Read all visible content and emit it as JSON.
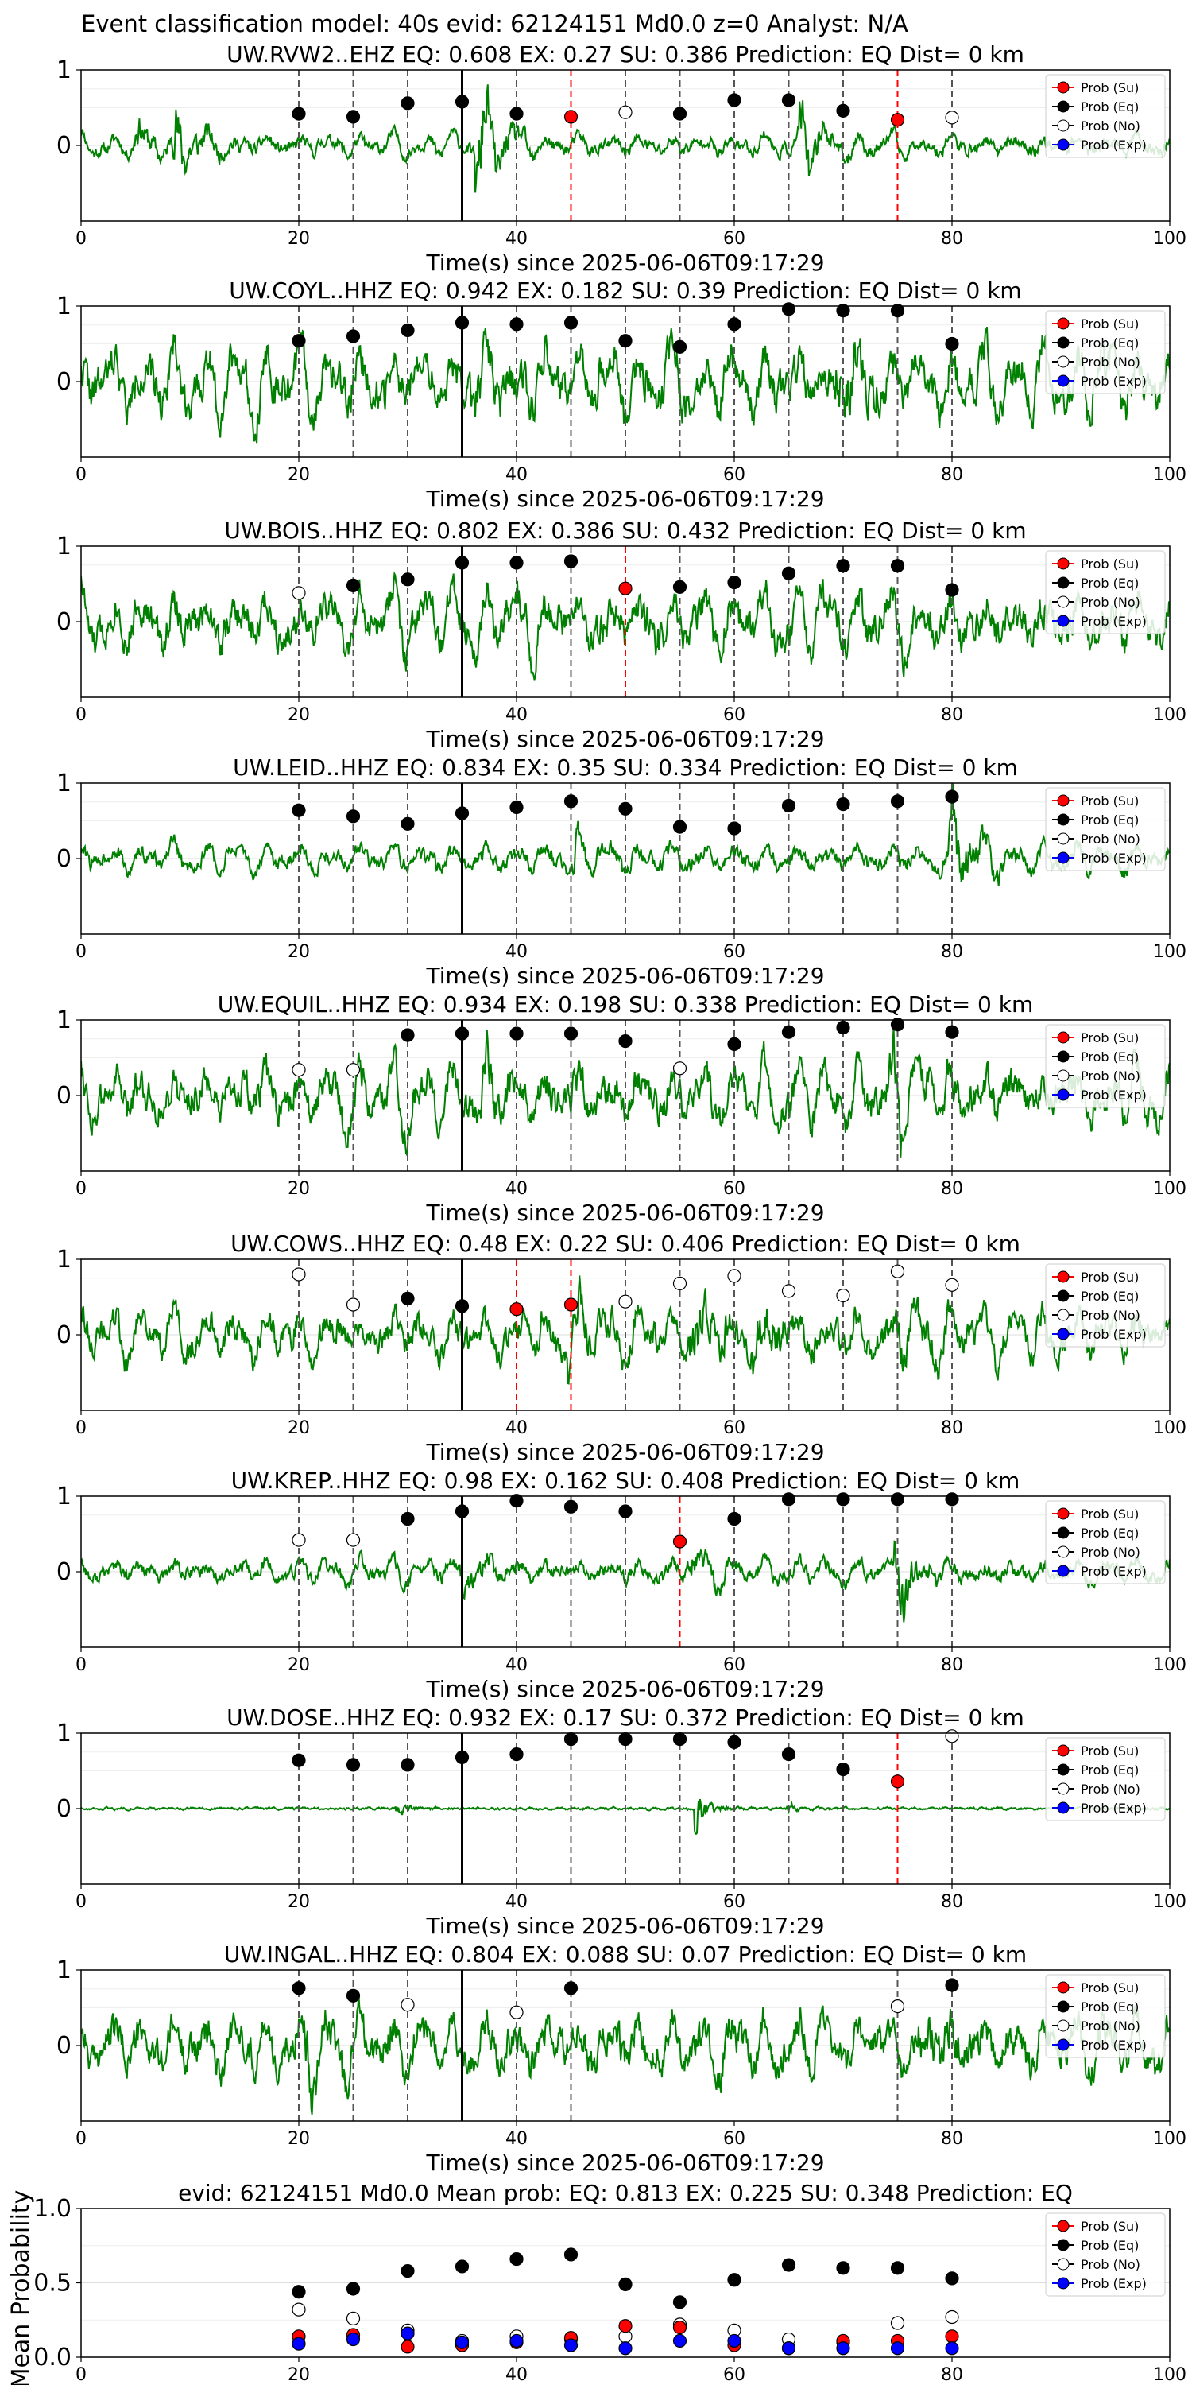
{
  "figure_title": "Event classification model: 40s evid: 62124151 Md0.0 z=0 Analyst: N/A",
  "legend_labels": [
    "Prob (Su)",
    "Prob (Eq)",
    "Prob (No)",
    "Prob (Exp)"
  ],
  "colors": {
    "waveform": "#008000",
    "su": "#ff0000",
    "eq": "#000000",
    "no": "#ffffff",
    "exp": "#0000ff",
    "arrival_line": "#000000",
    "window_line": "#555555",
    "su_line": "#ff0000"
  },
  "chart_data": [
    {
      "type": "line",
      "title": "UW.RVW2..EHZ   EQ: 0.608  EX: 0.27  SU: 0.386   Prediction: EQ    Dist= 0 km",
      "xlabel": "Time(s) since 2025-06-06T09:17:29",
      "xlim": [
        0,
        100
      ],
      "ylim": [
        -1,
        1
      ],
      "xticks": [
        0,
        20,
        40,
        60,
        80,
        100
      ],
      "yticks": [
        0,
        1
      ],
      "arrival_time": 35,
      "trace": {
        "seed": 11,
        "amp": 0.18,
        "bursts": [
          [
            8.5,
            0.75
          ],
          [
            36.5,
            0.95
          ],
          [
            66,
            0.6
          ],
          [
            5,
            0.3
          ]
        ]
      },
      "points": [
        {
          "x": 20,
          "y": 0.42,
          "cls": "eq"
        },
        {
          "x": 25,
          "y": 0.38,
          "cls": "eq"
        },
        {
          "x": 30,
          "y": 0.56,
          "cls": "eq"
        },
        {
          "x": 35,
          "y": 0.58,
          "cls": "eq"
        },
        {
          "x": 40,
          "y": 0.42,
          "cls": "eq"
        },
        {
          "x": 45,
          "y": 0.38,
          "cls": "su"
        },
        {
          "x": 50,
          "y": 0.44,
          "cls": "no"
        },
        {
          "x": 55,
          "y": 0.42,
          "cls": "eq"
        },
        {
          "x": 60,
          "y": 0.6,
          "cls": "eq"
        },
        {
          "x": 65,
          "y": 0.6,
          "cls": "eq"
        },
        {
          "x": 70,
          "y": 0.46,
          "cls": "eq"
        },
        {
          "x": 75,
          "y": 0.34,
          "cls": "su"
        },
        {
          "x": 80,
          "y": 0.37,
          "cls": "no"
        }
      ]
    },
    {
      "type": "line",
      "title": "UW.COYL..HHZ   EQ: 0.942  EX: 0.182  SU: 0.39   Prediction: EQ    Dist= 0 km",
      "xlabel": "Time(s) since 2025-06-06T09:17:29",
      "xlim": [
        0,
        100
      ],
      "ylim": [
        -1,
        1
      ],
      "xticks": [
        0,
        20,
        40,
        60,
        80,
        100
      ],
      "yticks": [
        0,
        1
      ],
      "arrival_time": 35,
      "trace": {
        "seed": 22,
        "amp": 0.55,
        "bursts": [
          [
            69.5,
            0.6
          ],
          [
            36,
            0.3
          ]
        ]
      },
      "points": [
        {
          "x": 20,
          "y": 0.54,
          "cls": "eq"
        },
        {
          "x": 25,
          "y": 0.6,
          "cls": "eq"
        },
        {
          "x": 30,
          "y": 0.68,
          "cls": "eq"
        },
        {
          "x": 35,
          "y": 0.78,
          "cls": "eq"
        },
        {
          "x": 40,
          "y": 0.76,
          "cls": "eq"
        },
        {
          "x": 45,
          "y": 0.78,
          "cls": "eq"
        },
        {
          "x": 50,
          "y": 0.54,
          "cls": "eq"
        },
        {
          "x": 55,
          "y": 0.46,
          "cls": "eq"
        },
        {
          "x": 60,
          "y": 0.76,
          "cls": "eq"
        },
        {
          "x": 65,
          "y": 0.96,
          "cls": "eq"
        },
        {
          "x": 70,
          "y": 0.94,
          "cls": "eq"
        },
        {
          "x": 75,
          "y": 0.94,
          "cls": "eq"
        },
        {
          "x": 80,
          "y": 0.5,
          "cls": "eq"
        }
      ]
    },
    {
      "type": "line",
      "title": "UW.BOIS..HHZ   EQ: 0.802  EX: 0.386  SU: 0.432   Prediction: EQ    Dist= 0 km",
      "xlabel": "Time(s) since 2025-06-06T09:17:29",
      "xlim": [
        0,
        100
      ],
      "ylim": [
        -1,
        1
      ],
      "xticks": [
        0,
        20,
        40,
        60,
        80,
        100
      ],
      "yticks": [
        0,
        1
      ],
      "arrival_time": 35,
      "trace": {
        "seed": 33,
        "amp": 0.5,
        "bursts": [
          [
            40,
            0.3
          ],
          [
            52,
            0.2
          ]
        ]
      },
      "points": [
        {
          "x": 20,
          "y": 0.38,
          "cls": "no"
        },
        {
          "x": 25,
          "y": 0.48,
          "cls": "eq"
        },
        {
          "x": 30,
          "y": 0.56,
          "cls": "eq"
        },
        {
          "x": 35,
          "y": 0.78,
          "cls": "eq"
        },
        {
          "x": 40,
          "y": 0.78,
          "cls": "eq"
        },
        {
          "x": 45,
          "y": 0.8,
          "cls": "eq"
        },
        {
          "x": 50,
          "y": 0.44,
          "cls": "su"
        },
        {
          "x": 55,
          "y": 0.46,
          "cls": "eq"
        },
        {
          "x": 60,
          "y": 0.52,
          "cls": "eq"
        },
        {
          "x": 65,
          "y": 0.64,
          "cls": "eq"
        },
        {
          "x": 70,
          "y": 0.74,
          "cls": "eq"
        },
        {
          "x": 75,
          "y": 0.74,
          "cls": "eq"
        },
        {
          "x": 80,
          "y": 0.42,
          "cls": "eq"
        }
      ]
    },
    {
      "type": "line",
      "title": "UW.LEID..HHZ   EQ: 0.834  EX: 0.35  SU: 0.334   Prediction: EQ    Dist= 0 km",
      "xlabel": "Time(s) since 2025-06-06T09:17:29",
      "xlim": [
        0,
        100
      ],
      "ylim": [
        -1,
        1
      ],
      "xticks": [
        0,
        20,
        40,
        60,
        80,
        100
      ],
      "yticks": [
        0,
        1
      ],
      "arrival_time": 35,
      "trace": {
        "seed": 44,
        "amp": 0.22,
        "bursts": [
          [
            80,
            0.8
          ],
          [
            45,
            0.3
          ]
        ]
      },
      "points": [
        {
          "x": 20,
          "y": 0.64,
          "cls": "eq"
        },
        {
          "x": 25,
          "y": 0.56,
          "cls": "eq"
        },
        {
          "x": 30,
          "y": 0.46,
          "cls": "eq"
        },
        {
          "x": 35,
          "y": 0.6,
          "cls": "eq"
        },
        {
          "x": 40,
          "y": 0.68,
          "cls": "eq"
        },
        {
          "x": 45,
          "y": 0.76,
          "cls": "eq"
        },
        {
          "x": 50,
          "y": 0.66,
          "cls": "eq"
        },
        {
          "x": 55,
          "y": 0.42,
          "cls": "eq"
        },
        {
          "x": 60,
          "y": 0.4,
          "cls": "eq"
        },
        {
          "x": 65,
          "y": 0.7,
          "cls": "eq"
        },
        {
          "x": 70,
          "y": 0.72,
          "cls": "eq"
        },
        {
          "x": 75,
          "y": 0.76,
          "cls": "eq"
        },
        {
          "x": 80,
          "y": 0.82,
          "cls": "eq"
        }
      ]
    },
    {
      "type": "line",
      "title": "UW.EQUIL..HHZ   EQ: 0.934  EX: 0.198  SU: 0.338   Prediction: EQ    Dist= 0 km",
      "xlabel": "Time(s) since 2025-06-06T09:17:29",
      "xlim": [
        0,
        100
      ],
      "ylim": [
        -1,
        1
      ],
      "xticks": [
        0,
        20,
        40,
        60,
        80,
        100
      ],
      "yticks": [
        0,
        1
      ],
      "arrival_time": 35,
      "trace": {
        "seed": 55,
        "amp": 0.5,
        "bursts": [
          [
            74.5,
            0.55
          ],
          [
            37,
            0.3
          ]
        ]
      },
      "points": [
        {
          "x": 20,
          "y": 0.34,
          "cls": "no"
        },
        {
          "x": 25,
          "y": 0.34,
          "cls": "no"
        },
        {
          "x": 30,
          "y": 0.8,
          "cls": "eq"
        },
        {
          "x": 35,
          "y": 0.82,
          "cls": "eq"
        },
        {
          "x": 40,
          "y": 0.82,
          "cls": "eq"
        },
        {
          "x": 45,
          "y": 0.82,
          "cls": "eq"
        },
        {
          "x": 50,
          "y": 0.72,
          "cls": "eq"
        },
        {
          "x": 55,
          "y": 0.36,
          "cls": "no"
        },
        {
          "x": 60,
          "y": 0.68,
          "cls": "eq"
        },
        {
          "x": 65,
          "y": 0.84,
          "cls": "eq"
        },
        {
          "x": 70,
          "y": 0.9,
          "cls": "eq"
        },
        {
          "x": 75,
          "y": 0.94,
          "cls": "eq"
        },
        {
          "x": 80,
          "y": 0.84,
          "cls": "eq"
        }
      ]
    },
    {
      "type": "line",
      "title": "UW.COWS..HHZ   EQ: 0.48  EX: 0.22  SU: 0.406   Prediction: EQ    Dist= 0 km",
      "xlabel": "Time(s) since 2025-06-06T09:17:29",
      "xlim": [
        0,
        100
      ],
      "ylim": [
        -1,
        1
      ],
      "xticks": [
        0,
        20,
        40,
        60,
        80,
        100
      ],
      "yticks": [
        0,
        1
      ],
      "arrival_time": 35,
      "trace": {
        "seed": 66,
        "amp": 0.4,
        "bursts": [
          [
            45,
            0.4
          ],
          [
            56,
            0.7
          ],
          [
            62,
            0.45
          ],
          [
            75,
            0.35
          ]
        ]
      },
      "points": [
        {
          "x": 20,
          "y": 0.8,
          "cls": "no"
        },
        {
          "x": 25,
          "y": 0.4,
          "cls": "no"
        },
        {
          "x": 30,
          "y": 0.48,
          "cls": "eq"
        },
        {
          "x": 35,
          "y": 0.38,
          "cls": "eq"
        },
        {
          "x": 40,
          "y": 0.34,
          "cls": "su"
        },
        {
          "x": 45,
          "y": 0.4,
          "cls": "su"
        },
        {
          "x": 50,
          "y": 0.44,
          "cls": "no"
        },
        {
          "x": 55,
          "y": 0.68,
          "cls": "no"
        },
        {
          "x": 60,
          "y": 0.78,
          "cls": "no"
        },
        {
          "x": 65,
          "y": 0.58,
          "cls": "no"
        },
        {
          "x": 70,
          "y": 0.52,
          "cls": "no"
        },
        {
          "x": 75,
          "y": 0.84,
          "cls": "no"
        },
        {
          "x": 80,
          "y": 0.66,
          "cls": "no"
        }
      ]
    },
    {
      "type": "line",
      "title": "UW.KREP..HHZ   EQ: 0.98  EX: 0.162  SU: 0.408   Prediction: EQ    Dist= 0 km",
      "xlabel": "Time(s) since 2025-06-06T09:17:29",
      "xlim": [
        0,
        100
      ],
      "ylim": [
        -1,
        1
      ],
      "xticks": [
        0,
        20,
        40,
        60,
        80,
        100
      ],
      "yticks": [
        0,
        1
      ],
      "arrival_time": 35,
      "trace": {
        "seed": 77,
        "amp": 0.2,
        "bursts": [
          [
            75,
            0.65
          ],
          [
            35,
            0.3
          ],
          [
            56,
            0.3
          ]
        ]
      },
      "points": [
        {
          "x": 20,
          "y": 0.42,
          "cls": "no"
        },
        {
          "x": 25,
          "y": 0.42,
          "cls": "no"
        },
        {
          "x": 30,
          "y": 0.7,
          "cls": "eq"
        },
        {
          "x": 35,
          "y": 0.8,
          "cls": "eq"
        },
        {
          "x": 40,
          "y": 0.94,
          "cls": "eq"
        },
        {
          "x": 45,
          "y": 0.86,
          "cls": "eq"
        },
        {
          "x": 50,
          "y": 0.8,
          "cls": "eq"
        },
        {
          "x": 55,
          "y": 0.4,
          "cls": "su"
        },
        {
          "x": 60,
          "y": 0.7,
          "cls": "eq"
        },
        {
          "x": 65,
          "y": 0.96,
          "cls": "eq"
        },
        {
          "x": 70,
          "y": 0.96,
          "cls": "eq"
        },
        {
          "x": 75,
          "y": 0.96,
          "cls": "eq"
        },
        {
          "x": 80,
          "y": 0.96,
          "cls": "eq"
        }
      ]
    },
    {
      "type": "line",
      "title": "UW.DOSE..HHZ   EQ: 0.932  EX: 0.17  SU: 0.372   Prediction: EQ    Dist= 0 km",
      "xlabel": "Time(s) since 2025-06-06T09:17:29",
      "xlim": [
        0,
        100
      ],
      "ylim": [
        -1,
        1
      ],
      "xticks": [
        0,
        20,
        40,
        60,
        80,
        100
      ],
      "yticks": [
        0,
        1
      ],
      "arrival_time": 35,
      "trace": {
        "seed": 88,
        "amp": 0.06,
        "bursts": [
          [
            56.5,
            0.9
          ],
          [
            29,
            0.25
          ],
          [
            65,
            0.15
          ]
        ]
      },
      "points": [
        {
          "x": 20,
          "y": 0.64,
          "cls": "eq"
        },
        {
          "x": 25,
          "y": 0.58,
          "cls": "eq"
        },
        {
          "x": 30,
          "y": 0.58,
          "cls": "eq"
        },
        {
          "x": 35,
          "y": 0.68,
          "cls": "eq"
        },
        {
          "x": 40,
          "y": 0.72,
          "cls": "eq"
        },
        {
          "x": 45,
          "y": 0.92,
          "cls": "eq"
        },
        {
          "x": 50,
          "y": 0.92,
          "cls": "eq"
        },
        {
          "x": 55,
          "y": 0.92,
          "cls": "eq"
        },
        {
          "x": 60,
          "y": 0.88,
          "cls": "eq"
        },
        {
          "x": 65,
          "y": 0.72,
          "cls": "eq"
        },
        {
          "x": 70,
          "y": 0.52,
          "cls": "eq"
        },
        {
          "x": 75,
          "y": 0.36,
          "cls": "su"
        },
        {
          "x": 80,
          "y": 0.96,
          "cls": "no"
        }
      ]
    },
    {
      "type": "line",
      "title": "UW.INGAL..HHZ   EQ: 0.804  EX: 0.088  SU: 0.07   Prediction: EQ    Dist= 0 km",
      "xlabel": "Time(s) since 2025-06-06T09:17:29",
      "xlim": [
        0,
        100
      ],
      "ylim": [
        -1,
        1
      ],
      "xticks": [
        0,
        20,
        40,
        60,
        80,
        100
      ],
      "yticks": [
        0,
        1
      ],
      "arrival_time": 35,
      "trace": {
        "seed": 99,
        "amp": 0.5,
        "bursts": [
          [
            20.5,
            0.5
          ],
          [
            77,
            0.4
          ]
        ]
      },
      "points": [
        {
          "x": 20,
          "y": 0.76,
          "cls": "eq"
        },
        {
          "x": 25,
          "y": 0.66,
          "cls": "eq"
        },
        {
          "x": 30,
          "y": 0.54,
          "cls": "no"
        },
        {
          "x": 40,
          "y": 0.44,
          "cls": "no"
        },
        {
          "x": 45,
          "y": 0.76,
          "cls": "eq"
        },
        {
          "x": 75,
          "y": 0.52,
          "cls": "no"
        },
        {
          "x": 80,
          "y": 0.8,
          "cls": "eq"
        }
      ]
    },
    {
      "type": "scatter",
      "title": "evid: 62124151  Md0.0   Mean prob:    EQ: 0.813  EX: 0.225  SU: 0.348   Prediction: EQ",
      "ylabel": "Mean Probability",
      "xlim": [
        0,
        100
      ],
      "ylim": [
        0,
        1
      ],
      "xticks": [
        0,
        20,
        40,
        60,
        80,
        100
      ],
      "yticks": [
        0.0,
        0.5,
        1.0
      ],
      "ytick_labels": [
        "0.0",
        "0.5",
        "1.0"
      ],
      "x": [
        20,
        25,
        30,
        35,
        40,
        45,
        50,
        55,
        60,
        65,
        70,
        75,
        80
      ],
      "series": [
        {
          "name": "Prob (No)",
          "cls": "no",
          "values": [
            0.32,
            0.26,
            0.18,
            0.11,
            0.14,
            0.12,
            0.14,
            0.22,
            0.18,
            0.12,
            0.1,
            0.23,
            0.27
          ]
        },
        {
          "name": "Prob (Su)",
          "cls": "su",
          "values": [
            0.14,
            0.15,
            0.07,
            0.08,
            0.1,
            0.13,
            0.21,
            0.2,
            0.08,
            0.06,
            0.11,
            0.11,
            0.14
          ]
        },
        {
          "name": "Prob (Exp)",
          "cls": "exp",
          "values": [
            0.09,
            0.12,
            0.16,
            0.1,
            0.11,
            0.08,
            0.06,
            0.11,
            0.11,
            0.06,
            0.06,
            0.06,
            0.06
          ]
        },
        {
          "name": "Prob (Eq)",
          "cls": "eq",
          "values": [
            0.44,
            0.46,
            0.58,
            0.61,
            0.66,
            0.69,
            0.49,
            0.37,
            0.52,
            0.62,
            0.6,
            0.6,
            0.53
          ]
        }
      ]
    }
  ]
}
